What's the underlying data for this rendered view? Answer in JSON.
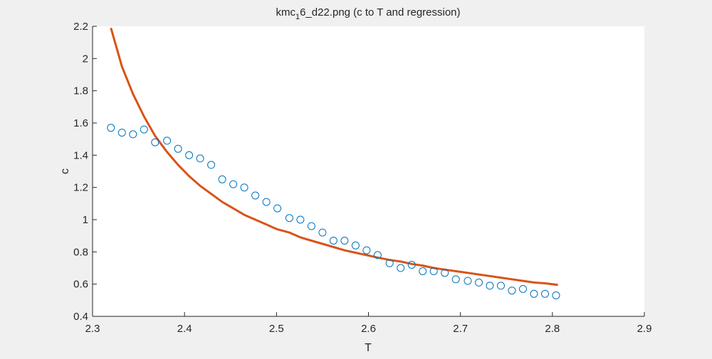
{
  "chart_data": {
    "type": "scatter",
    "title_main": "kmc",
    "title_sub": "1",
    "title_rest": "6_d22.png (c to T and regression)",
    "xlabel": "T",
    "ylabel": "c",
    "xlim": [
      2.3,
      2.9
    ],
    "ylim": [
      0.4,
      2.2
    ],
    "xticks": [
      2.3,
      2.4,
      2.5,
      2.6,
      2.7,
      2.8,
      2.9
    ],
    "xtick_labels": [
      "2.3",
      "2.4",
      "2.5",
      "2.6",
      "2.7",
      "2.8",
      "2.9"
    ],
    "yticks": [
      0.4,
      0.6,
      0.8,
      1.0,
      1.2,
      1.4,
      1.6,
      1.8,
      2.0,
      2.2
    ],
    "ytick_labels": [
      "0.4",
      "0.6",
      "0.8",
      "1",
      "1.2",
      "1.4",
      "1.6",
      "1.8",
      "2",
      "2.2"
    ],
    "grid": false,
    "colors": {
      "scatter": "#0072bd",
      "regression": "#d95319",
      "axes": "#262626",
      "plot_bg": "#ffffff",
      "figure_bg": "#f0f0f0"
    },
    "series": [
      {
        "kind": "scatter",
        "x": [
          2.32,
          2.332,
          2.344,
          2.356,
          2.368,
          2.381,
          2.393,
          2.405,
          2.417,
          2.429,
          2.441,
          2.453,
          2.465,
          2.477,
          2.489,
          2.501,
          2.514,
          2.526,
          2.538,
          2.55,
          2.562,
          2.574,
          2.586,
          2.598,
          2.61,
          2.623,
          2.635,
          2.647,
          2.659,
          2.671,
          2.683,
          2.695,
          2.708,
          2.72,
          2.732,
          2.744,
          2.756,
          2.768,
          2.78,
          2.792,
          2.804
        ],
        "y": [
          1.57,
          1.54,
          1.53,
          1.56,
          1.48,
          1.49,
          1.44,
          1.4,
          1.38,
          1.34,
          1.25,
          1.22,
          1.2,
          1.15,
          1.11,
          1.07,
          1.01,
          1.0,
          0.96,
          0.92,
          0.87,
          0.87,
          0.84,
          0.81,
          0.78,
          0.73,
          0.7,
          0.72,
          0.68,
          0.68,
          0.67,
          0.63,
          0.62,
          0.61,
          0.59,
          0.59,
          0.56,
          0.57,
          0.54,
          0.54,
          0.53
        ]
      },
      {
        "kind": "line",
        "x": [
          2.32,
          2.332,
          2.344,
          2.356,
          2.368,
          2.381,
          2.393,
          2.405,
          2.417,
          2.429,
          2.441,
          2.453,
          2.465,
          2.477,
          2.489,
          2.501,
          2.514,
          2.526,
          2.538,
          2.55,
          2.562,
          2.574,
          2.586,
          2.598,
          2.61,
          2.623,
          2.635,
          2.647,
          2.659,
          2.671,
          2.683,
          2.695,
          2.708,
          2.72,
          2.732,
          2.744,
          2.756,
          2.768,
          2.78,
          2.792,
          2.806
        ],
        "y": [
          2.19,
          1.95,
          1.78,
          1.64,
          1.52,
          1.42,
          1.34,
          1.27,
          1.21,
          1.16,
          1.11,
          1.07,
          1.03,
          1.0,
          0.97,
          0.94,
          0.92,
          0.89,
          0.87,
          0.85,
          0.83,
          0.81,
          0.795,
          0.78,
          0.765,
          0.75,
          0.74,
          0.725,
          0.715,
          0.7,
          0.69,
          0.68,
          0.67,
          0.66,
          0.65,
          0.64,
          0.63,
          0.62,
          0.61,
          0.605,
          0.595
        ]
      }
    ]
  }
}
